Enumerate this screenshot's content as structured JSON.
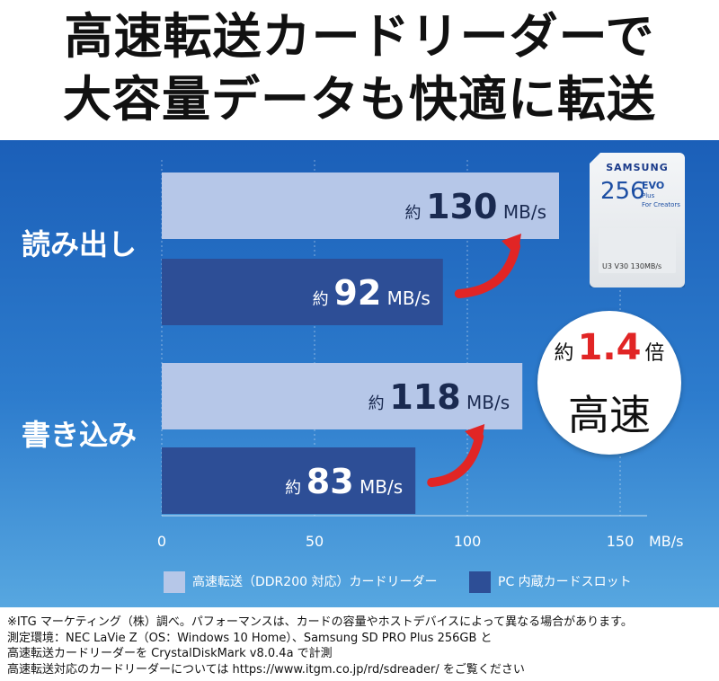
{
  "headline": {
    "line1": "高速転送カードリーダーで",
    "line2": "大容量データも快適に転送"
  },
  "colors": {
    "card_reader": "#b6c7e8",
    "pc_slot": "#2d4e96",
    "accent_red": "#e12525"
  },
  "chart_data": {
    "type": "bar",
    "orientation": "horizontal",
    "categories": [
      "読み出し",
      "書き込み"
    ],
    "series": [
      {
        "name": "高速転送（DDR200 対応）カードリーダー",
        "values": [
          130,
          118
        ],
        "color": "#b6c7e8"
      },
      {
        "name": "PC 内蔵カードスロット",
        "values": [
          92,
          83
        ],
        "color": "#2d4e96"
      }
    ],
    "bar_label_prefix": "約",
    "unit": "MB/s",
    "xlim": [
      0,
      150
    ],
    "x_ticks": [
      "0",
      "50",
      "100",
      "150"
    ],
    "xlabel": "MB/s",
    "grid": true,
    "legend_position": "bottom"
  },
  "speedup": {
    "prefix": "約",
    "value": "1.4",
    "suffix": "倍",
    "label": "高速"
  },
  "card": {
    "brand": "SAMSUNG",
    "capacity": "256",
    "line": "EVO",
    "sub1": "Plus",
    "sub2": "For Creators",
    "spec": "U3  V30  130MB/s"
  },
  "footnote": [
    "※ITG マーケティング（株）調べ。パフォーマンスは、カードの容量やホストデバイスによって異なる場合があります。",
    "測定環境：NEC LaVie Z（OS：Windows 10 Home）、Samsung SD PRO Plus 256GB と",
    "高速転送カードリーダーを CrystalDiskMark v8.0.4a で計測",
    "高速転送対応のカードリーダーについては https://www.itgm.co.jp/rd/sdreader/ をご覧ください"
  ]
}
